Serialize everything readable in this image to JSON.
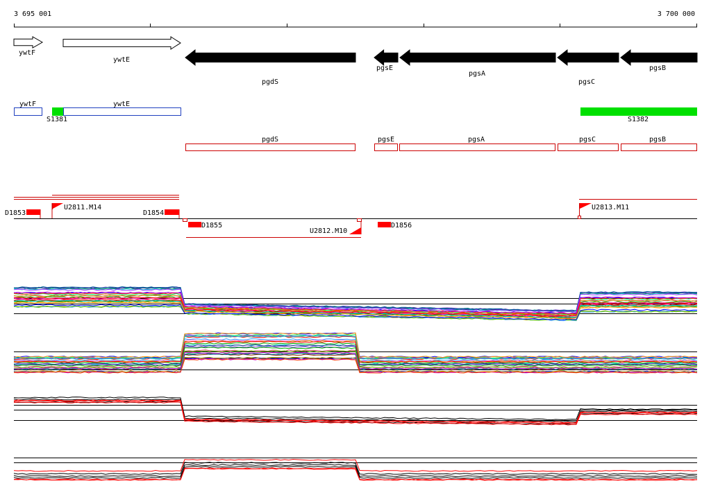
{
  "coordinates": {
    "start_label": "3 695 001",
    "end_label": "3 700 000"
  },
  "colors": {
    "forward_gene_fill": "#ffffff",
    "reverse_gene_fill": "#000000",
    "annotation_blue": "#1f3fbf",
    "annotation_red": "#cc0000",
    "signal_green": "#00e000",
    "marker_red": "#ff0000"
  },
  "genes_top": [
    {
      "label": "ywtF",
      "strand": "+"
    },
    {
      "label": "ywtE",
      "strand": "+"
    },
    {
      "label": "pgdS",
      "strand": "-"
    },
    {
      "label": "pgsE",
      "strand": "-"
    },
    {
      "label": "pgsA",
      "strand": "-"
    },
    {
      "label": "pgsC",
      "strand": "-"
    },
    {
      "label": "pgsB",
      "strand": "-"
    }
  ],
  "annotation_blue": [
    {
      "label": "ywtF"
    },
    {
      "label": "ywtE"
    }
  ],
  "green_features": [
    {
      "label": "S1381"
    },
    {
      "label": "S1382"
    }
  ],
  "annotation_red": [
    {
      "label": "pgdS"
    },
    {
      "label": "pgsE"
    },
    {
      "label": "pgsA"
    },
    {
      "label": "pgsC"
    },
    {
      "label": "pgsB"
    }
  ],
  "tss_flags": [
    {
      "label": "U2811.M14"
    },
    {
      "label": "U2812.M10"
    },
    {
      "label": "U2813.M11"
    }
  ],
  "terminators": [
    {
      "label": "D1853"
    },
    {
      "label": "D1854"
    },
    {
      "label": "D1855"
    },
    {
      "label": "D1856"
    }
  ],
  "expression_panels": [
    {
      "name": "panel-1"
    },
    {
      "name": "panel-2"
    },
    {
      "name": "panel-3"
    },
    {
      "name": "panel-4"
    }
  ]
}
